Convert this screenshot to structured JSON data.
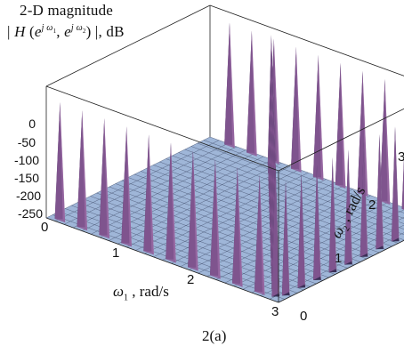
{
  "chart_data": {
    "type": "surface3d",
    "title_lines": [
      "2-D magnitude",
      "| H (e^{jω1}, e^{jω2}) |, dB"
    ],
    "title_line1": "2-D magnitude",
    "title_line2_parts": {
      "prefix": "| ",
      "H": "H",
      "open": " (",
      "e1": "e",
      "sup1_j": "j",
      "sup1_w": "ω",
      "sup1_sub": "1",
      "comma": ", ",
      "e2": "e",
      "sup2_j": "j",
      "sup2_w": "ω",
      "sup2_sub": "2",
      "close": ") |, dB"
    },
    "z_ticks": [
      "0",
      "-50",
      "-100",
      "-150",
      "-200",
      "-250"
    ],
    "z_tick_values": [
      0,
      -50,
      -100,
      -150,
      -200,
      -250
    ],
    "zlim": [
      -250,
      0
    ],
    "x_ticks": [
      "0",
      "1",
      "2",
      "3"
    ],
    "x_tick_values": [
      0,
      1,
      2,
      3
    ],
    "xlim": [
      0,
      3.1416
    ],
    "y_ticks": [
      "0",
      "1",
      "2",
      "3"
    ],
    "y_tick_values": [
      0,
      1,
      2,
      3
    ],
    "ylim": [
      0,
      3.1416
    ],
    "xlabel": {
      "w": "ω",
      "sub": "1",
      "rest": " , rad/s"
    },
    "ylabel": {
      "w": "ω",
      "sub": "2",
      "rest": " , rad/s"
    },
    "caption": "2(a)",
    "surface": {
      "floor_level_db": -250,
      "spikes_along_omega1_at_omega2_0": [
        0.15,
        0.45,
        0.75,
        1.05,
        1.35,
        1.65,
        1.95,
        2.25,
        2.55,
        2.85
      ],
      "spikes_along_omega2_at_omega1_0": [
        0.25,
        0.55,
        0.85,
        1.15,
        1.45,
        1.75,
        2.05,
        2.35,
        2.65,
        2.95
      ],
      "spikes_along_omega1_at_omega2_pi": [
        0.3,
        0.6,
        0.9,
        1.2,
        1.5,
        1.8,
        2.1,
        2.4,
        2.7,
        3.0
      ],
      "spike_height_db": 0
    },
    "colors": {
      "surface_top": "#9fb6d8",
      "surface_light": "#b8cbe6",
      "spike_purple": "#8c5a98",
      "spike_light": "#c9a9cf",
      "spike_dark": "#3a2f57",
      "mesh": "#4d5a78",
      "box": "#222222"
    },
    "grid": true
  }
}
